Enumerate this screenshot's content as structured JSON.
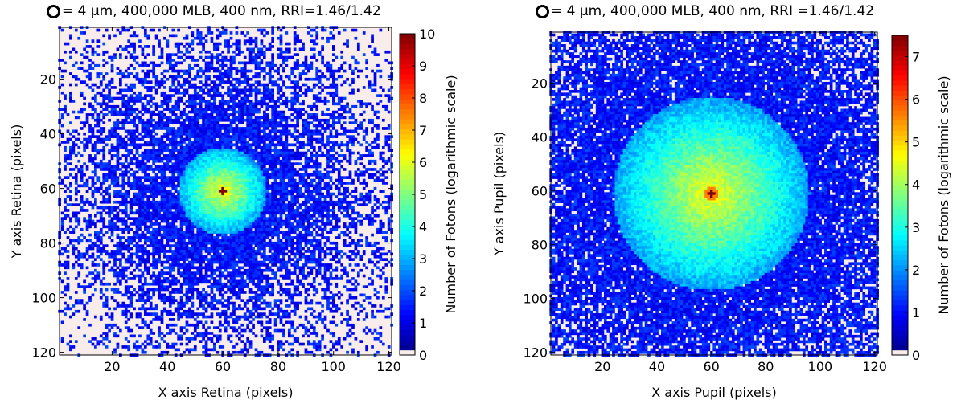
{
  "chart_data": [
    {
      "type": "heatmap",
      "title": "= 4 µm, 400,000 MLB, 400 nm, RRI=1.46/1.42",
      "title_marker_icon": "ring-icon",
      "xlabel": "X axis Retina (pixels)",
      "ylabel": "Y axis Retina (pixels)",
      "xlim": [
        1,
        121
      ],
      "ylim": [
        1,
        121
      ],
      "y_inverted": true,
      "x_ticks": [
        "20",
        "40",
        "60",
        "80",
        "100",
        "120"
      ],
      "y_ticks": [
        "20",
        "40",
        "60",
        "80",
        "100",
        "120"
      ],
      "colorbar": {
        "label": "Number of Fotons (logarithmic scale)",
        "range": [
          0,
          10
        ],
        "ticks": [
          "0",
          "1",
          "2",
          "3",
          "4",
          "5",
          "6",
          "7",
          "8",
          "9",
          "10"
        ]
      },
      "background_color": "#f9edeb",
      "colormap": "jet",
      "peak": {
        "x": 60,
        "y": 61,
        "value": 10
      },
      "core_radius": 16,
      "noise_extent": 42,
      "distribution": "concentrated central spot, sparse scattered noise"
    },
    {
      "type": "heatmap",
      "title": "= 4 µm, 400,000 MLB, 400 nm, RRI =1.46/1.42",
      "title_marker_icon": "ring-icon",
      "xlabel": "X axis Pupil (pixels)",
      "ylabel": "Y axis Pupil (pixels)",
      "xlim": [
        1,
        121
      ],
      "ylim": [
        1,
        121
      ],
      "y_inverted": true,
      "x_ticks": [
        "20",
        "40",
        "60",
        "80",
        "100",
        "120"
      ],
      "y_ticks": [
        "20",
        "40",
        "60",
        "80",
        "100",
        "120"
      ],
      "colorbar": {
        "label": "Number of Fotons (logarithmic scale)",
        "range": [
          0,
          7.5
        ],
        "ticks": [
          "0",
          "1",
          "2",
          "3",
          "4",
          "5",
          "6",
          "7"
        ]
      },
      "background_color": "#f9edeb",
      "colormap": "jet",
      "peak": {
        "x": 60,
        "y": 61,
        "value": 7.5
      },
      "core_radius": 36,
      "noise_extent": 72,
      "distribution": "broad spread filling most of the field"
    }
  ]
}
